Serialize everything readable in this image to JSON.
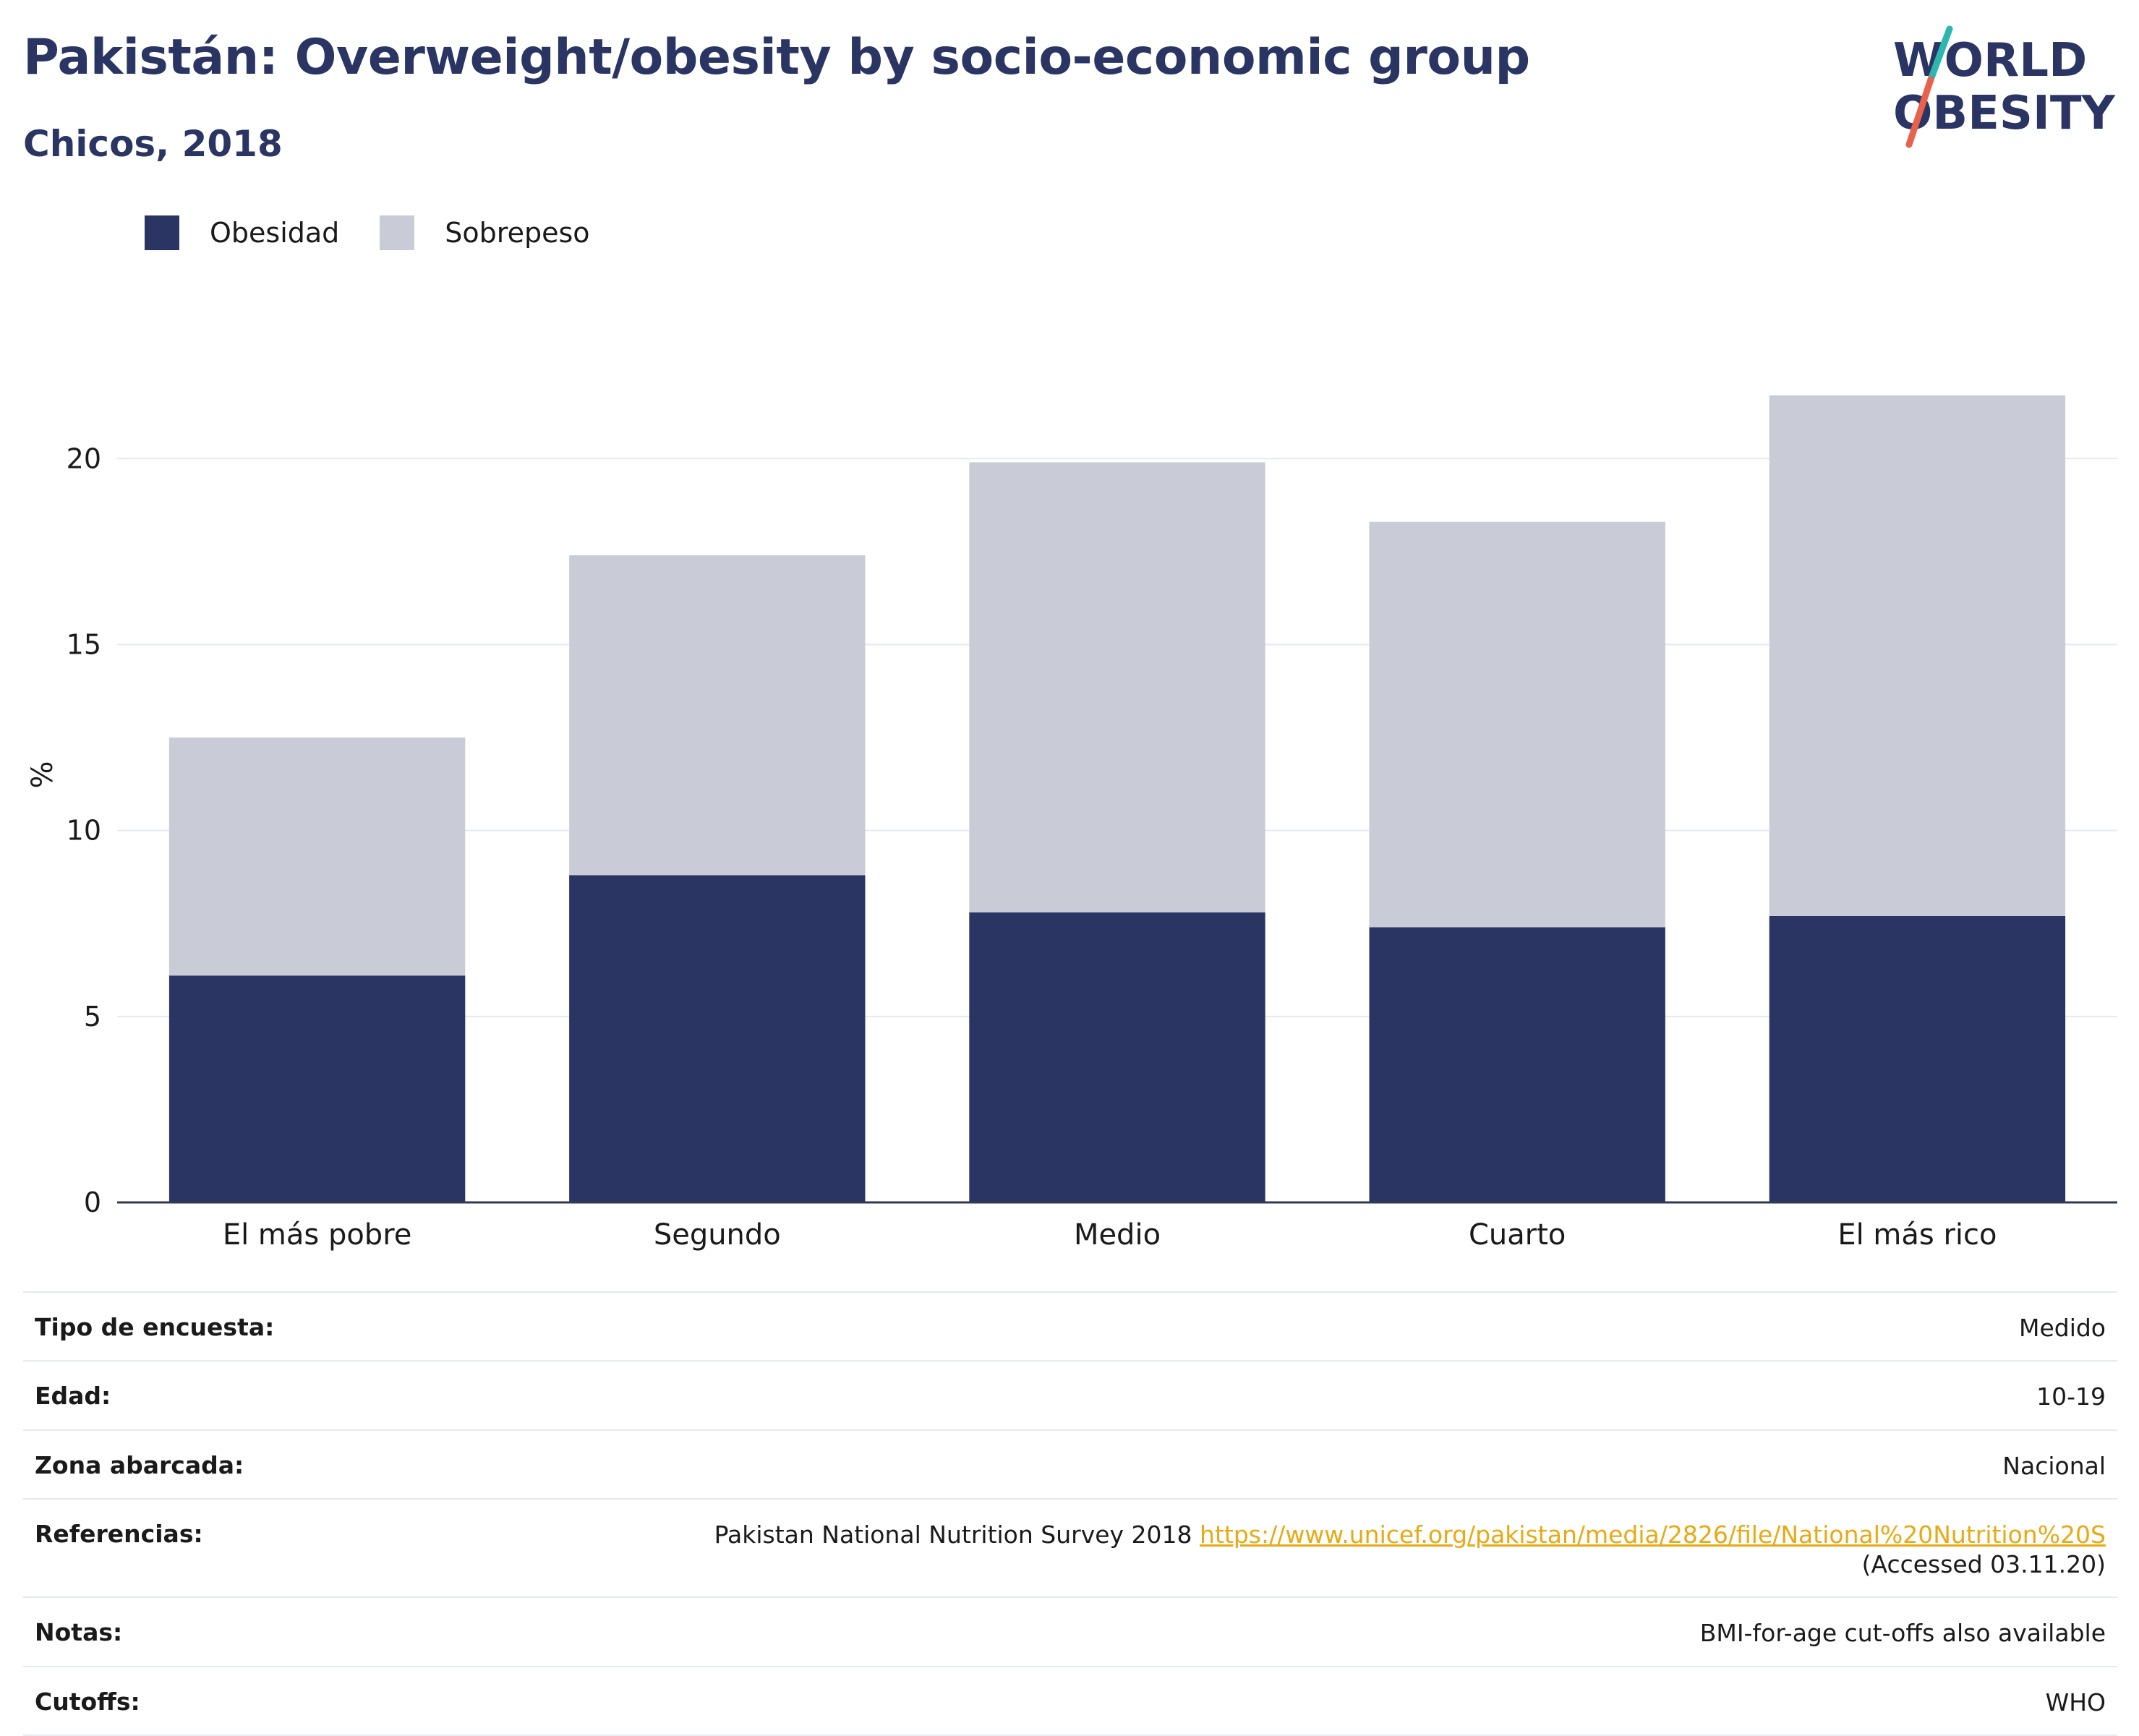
{
  "header": {
    "title": "Pakistán: Overweight/obesity by socio-economic group",
    "subtitle": "Chicos, 2018"
  },
  "logo": {
    "line1": "WORLD",
    "line2": "OBESITY",
    "icon": "world-obesity-logo",
    "colors": {
      "text": "#2a3563",
      "slash_top": "#2bb6b0",
      "slash_bottom": "#e8614d"
    }
  },
  "legend": [
    {
      "label": "Obesidad",
      "color": "#2a3563"
    },
    {
      "label": "Sobrepeso",
      "color": "#c9cbd7"
    }
  ],
  "chart_data": {
    "type": "bar",
    "stacked": true,
    "categories": [
      "El más pobre",
      "Segundo",
      "Medio",
      "Cuarto",
      "El más rico"
    ],
    "series": [
      {
        "name": "Obesidad",
        "values": [
          6.1,
          8.8,
          7.8,
          7.4,
          7.7
        ],
        "color": "#2a3563"
      },
      {
        "name": "Sobrepeso",
        "values": [
          6.4,
          8.6,
          12.1,
          10.9,
          14.0
        ],
        "color": "#c9cbd7"
      }
    ],
    "ylabel": "%",
    "ylim": [
      0,
      23
    ],
    "yticks": [
      0,
      5,
      10,
      15,
      20
    ],
    "grid": true,
    "legend_position": "top-left"
  },
  "info": [
    {
      "key": "Tipo de encuesta:",
      "value": "Medido"
    },
    {
      "key": "Edad:",
      "value": "10-19"
    },
    {
      "key": "Zona abarcada:",
      "value": "Nacional"
    },
    {
      "key": "Referencias:",
      "value_prefix": "Pakistan National Nutrition Survey 2018 ",
      "link": "https://www.unicef.org/pakistan/media/2826/file/National%20Nutrition%20S",
      "value_suffix": " (Accessed 03.11.20)"
    },
    {
      "key": "Notas:",
      "value": "BMI-for-age cut-offs also available"
    },
    {
      "key": "Cutoffs:",
      "value": "WHO"
    }
  ]
}
